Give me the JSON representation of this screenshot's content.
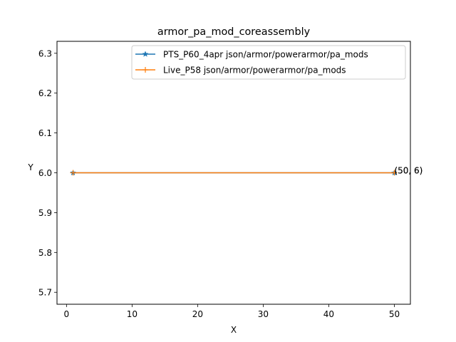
{
  "chart_data": {
    "type": "line",
    "title": "armor_pa_mod_coreassembly",
    "xlabel": "X",
    "ylabel": "Y",
    "xlim": [
      -1.45,
      52.45
    ],
    "ylim": [
      5.67,
      6.33
    ],
    "xticks": [
      0,
      10,
      20,
      30,
      40,
      50
    ],
    "yticks": [
      5.7,
      5.8,
      5.9,
      6.0,
      6.1,
      6.2,
      6.3
    ],
    "xtick_labels": [
      "0",
      "10",
      "20",
      "30",
      "40",
      "50"
    ],
    "ytick_labels": [
      "5.7",
      "5.8",
      "5.9",
      "6.0",
      "6.1",
      "6.2",
      "6.3"
    ],
    "grid": false,
    "legend_position": "upper right",
    "series": [
      {
        "name": "PTS_P60_4apr json/armor/powerarmor/pa_mods",
        "color": "#1f77b4",
        "marker": "star",
        "x": [
          1,
          50
        ],
        "y": [
          6,
          6
        ]
      },
      {
        "name": "Live_P58 json/armor/powerarmor/pa_mods",
        "color": "#ff7f0e",
        "marker": "plus",
        "x": [
          1,
          50
        ],
        "y": [
          6,
          6
        ]
      }
    ],
    "annotations": [
      {
        "text": "(50, 6)",
        "x": 50,
        "y": 6
      },
      {
        "text": "(50, 6)",
        "x": 50,
        "y": 6
      }
    ]
  }
}
